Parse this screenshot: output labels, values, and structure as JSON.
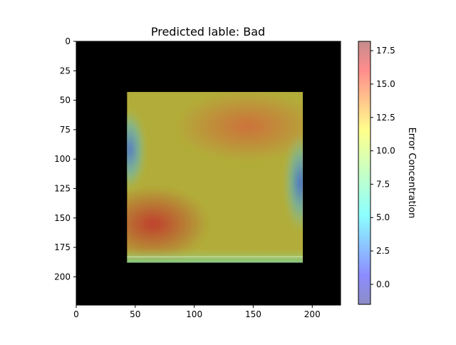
{
  "chart_data": {
    "type": "heatmap",
    "title": "Predicted lable: Bad",
    "image_extent": {
      "x": [
        0,
        224
      ],
      "y": [
        224,
        0
      ]
    },
    "x_ticks": [
      0,
      50,
      100,
      150,
      200
    ],
    "y_ticks": [
      0,
      25,
      50,
      75,
      100,
      125,
      150,
      175,
      200
    ],
    "inner_image": {
      "x": [
        43,
        192
      ],
      "y": [
        43,
        188
      ]
    },
    "colorbar": {
      "label": "Error Concentration",
      "range": [
        -1.5,
        18.2
      ],
      "ticks": [
        "0.0",
        "2.5",
        "5.0",
        "7.5",
        "10.0",
        "12.5",
        "15.0",
        "17.5"
      ],
      "tick_values": [
        0,
        2.5,
        5,
        7.5,
        10,
        12.5,
        15,
        17.5
      ],
      "colormap": "jet",
      "alpha": 0.45
    },
    "hotspots": [
      {
        "label": "upper-center",
        "x": 145,
        "y": 72,
        "value": 15.5
      },
      {
        "label": "lower-left",
        "x": 65,
        "y": 155,
        "value": 17.5
      },
      {
        "label": "left-edge",
        "x": 45,
        "y": 92,
        "value": 2
      },
      {
        "label": "right-edge",
        "x": 190,
        "y": 120,
        "value": 0
      }
    ],
    "background_value": 10.5,
    "background": "black"
  }
}
